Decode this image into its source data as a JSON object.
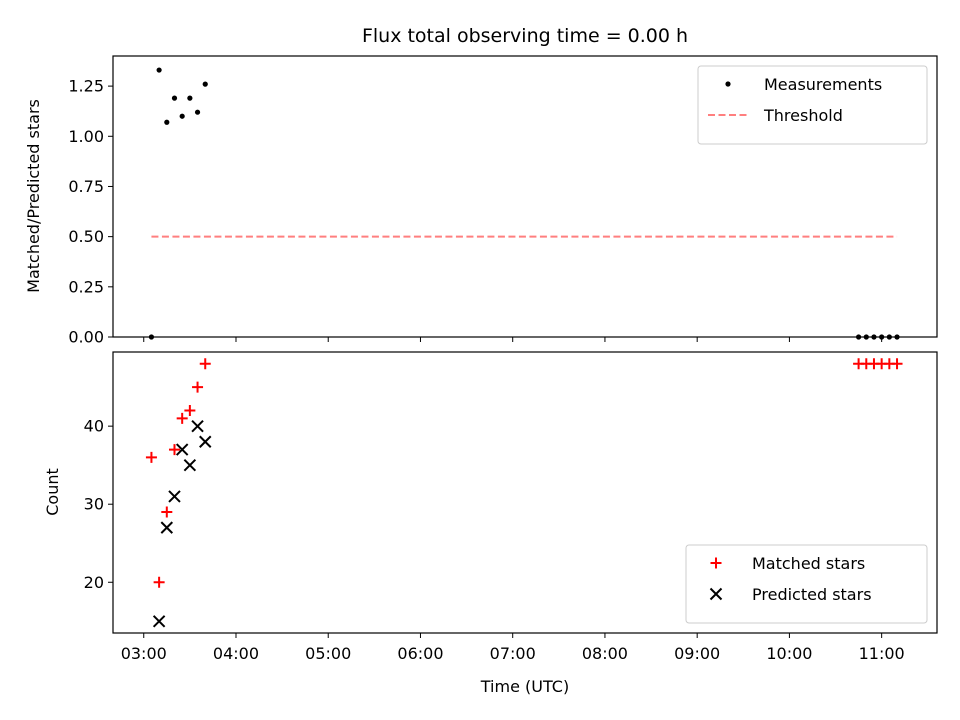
{
  "chart_data": [
    {
      "type": "scatter",
      "title": "Flux total observing time = 0.00 h",
      "xlabel": "",
      "ylabel": "Matched/Predicted stars",
      "xlim": [
        "02:40",
        "11:36"
      ],
      "ylim": [
        0,
        1.4
      ],
      "yticks": [
        "0.00",
        "0.25",
        "0.50",
        "0.75",
        "1.00",
        "1.25"
      ],
      "legend_position": "top-right",
      "series": [
        {
          "name": "Measurements",
          "marker": "dot",
          "color": "#000000",
          "points": [
            [
              "03:05",
              0.0
            ],
            [
              "03:10",
              1.33
            ],
            [
              "03:15",
              1.07
            ],
            [
              "03:20",
              1.19
            ],
            [
              "03:25",
              1.1
            ],
            [
              "03:30",
              1.19
            ],
            [
              "03:35",
              1.12
            ],
            [
              "03:40",
              1.26
            ],
            [
              "10:45",
              0.0
            ],
            [
              "10:50",
              0.0
            ],
            [
              "10:55",
              0.0
            ],
            [
              "11:00",
              0.0
            ],
            [
              "11:05",
              0.0
            ],
            [
              "11:10",
              0.0
            ]
          ]
        },
        {
          "name": "Threshold",
          "marker": "dashed-line",
          "color": "#ff7f7f",
          "points": [
            [
              "03:05",
              0.5
            ],
            [
              "11:10",
              0.5
            ]
          ]
        }
      ]
    },
    {
      "type": "scatter",
      "title": "",
      "xlabel": "Time (UTC)",
      "ylabel": "Count",
      "xlim": [
        "02:40",
        "11:36"
      ],
      "ylim": [
        13.5,
        49.5
      ],
      "yticks": [
        "20",
        "30",
        "40"
      ],
      "xticks": [
        "03:00",
        "04:00",
        "05:00",
        "06:00",
        "07:00",
        "08:00",
        "09:00",
        "10:00",
        "11:00"
      ],
      "legend_position": "bottom-right",
      "series": [
        {
          "name": "Matched stars",
          "marker": "plus",
          "color": "#ff0000",
          "points": [
            [
              "03:05",
              36
            ],
            [
              "03:10",
              20
            ],
            [
              "03:15",
              29
            ],
            [
              "03:20",
              37
            ],
            [
              "03:25",
              41
            ],
            [
              "03:30",
              42
            ],
            [
              "03:35",
              45
            ],
            [
              "03:40",
              48
            ],
            [
              "10:45",
              48
            ],
            [
              "10:50",
              48
            ],
            [
              "10:55",
              48
            ],
            [
              "11:00",
              48
            ],
            [
              "11:05",
              48
            ],
            [
              "11:10",
              48
            ]
          ]
        },
        {
          "name": "Predicted stars",
          "marker": "x",
          "color": "#000000",
          "points": [
            [
              "03:10",
              15
            ],
            [
              "03:15",
              27
            ],
            [
              "03:20",
              31
            ],
            [
              "03:25",
              37
            ],
            [
              "03:30",
              35
            ],
            [
              "03:35",
              40
            ],
            [
              "03:40",
              38
            ]
          ]
        }
      ]
    }
  ]
}
